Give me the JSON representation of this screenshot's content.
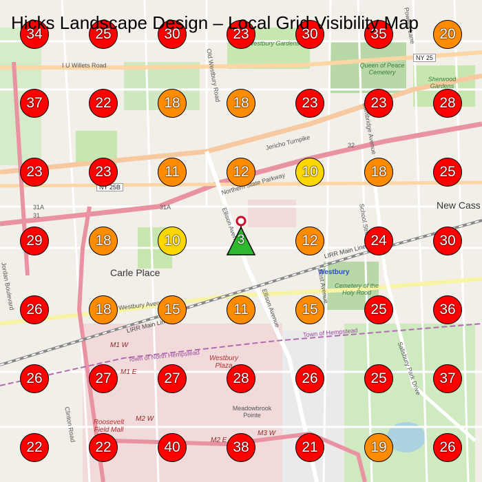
{
  "title": "Hicks Landscape Design – Local Grid Visibility Map",
  "colors": {
    "high": "#ff0000",
    "medium": "#ff8c00",
    "low": "#ffd700",
    "site": "#2db82d",
    "site_pin": "#c8102e"
  },
  "site_marker": {
    "rank": "3",
    "icon": "triangle-pin-icon"
  },
  "grid": [
    [
      34,
      25,
      30,
      23,
      30,
      35,
      20
    ],
    [
      37,
      22,
      18,
      18,
      23,
      23,
      28
    ],
    [
      23,
      23,
      11,
      12,
      10,
      18,
      25
    ],
    [
      29,
      18,
      10,
      null,
      12,
      24,
      30
    ],
    [
      26,
      18,
      15,
      11,
      15,
      25,
      36
    ],
    [
      26,
      27,
      27,
      28,
      26,
      25,
      37
    ],
    [
      22,
      22,
      40,
      38,
      21,
      19,
      26
    ]
  ],
  "map_labels": {
    "places": [
      "Carle Place",
      "New Cass"
    ],
    "roads": [
      "I U Willets Road",
      "Jericho Turnpike",
      "Northern State Parkway",
      "Westbury Avenue",
      "Old Westbury Road",
      "Ellison Avenue",
      "Cambridge Avenue",
      "School Street",
      "Post Avenue",
      "Salisbury Park Drive",
      "Powells Lane",
      "Glen Cove Road",
      "Clinton Road",
      "Jordan Boulevard"
    ],
    "shields": [
      "NY 25",
      "NY 25B",
      "32",
      "31A",
      "31"
    ],
    "rail": [
      "LIRR Main Line"
    ],
    "station": "Westbury",
    "greens": [
      "Westbury Gardens",
      "Queen of Peace Cemetery",
      "Cemetery of the Holy Rood",
      "Sherwood Gardens"
    ],
    "pois": [
      "Westbury Plaza",
      "Roosevelt Field Mall",
      "Meadowbrook Pointe"
    ],
    "boundaries": [
      "Town of North Hempstead",
      "Town of Hempstead"
    ],
    "highways": [
      "M1 W",
      "M1 E",
      "M2 W",
      "M3 W",
      "M2 E"
    ]
  }
}
